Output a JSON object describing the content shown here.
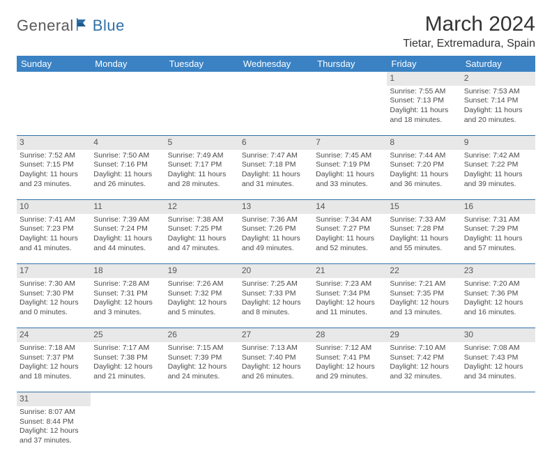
{
  "logo": {
    "part1": "General",
    "part2": "Blue"
  },
  "title": "March 2024",
  "location": "Tietar, Extremadura, Spain",
  "colors": {
    "header_bg": "#3a82c4",
    "header_text": "#ffffff",
    "daynum_bg": "#e8e8e8",
    "row_divider": "#2f6fa8",
    "logo_gray": "#595959",
    "logo_blue": "#2f6fa8"
  },
  "days_of_week": [
    "Sunday",
    "Monday",
    "Tuesday",
    "Wednesday",
    "Thursday",
    "Friday",
    "Saturday"
  ],
  "weeks": [
    [
      null,
      null,
      null,
      null,
      null,
      {
        "n": "1",
        "sunrise": "Sunrise: 7:55 AM",
        "sunset": "Sunset: 7:13 PM",
        "daylight": "Daylight: 11 hours and 18 minutes."
      },
      {
        "n": "2",
        "sunrise": "Sunrise: 7:53 AM",
        "sunset": "Sunset: 7:14 PM",
        "daylight": "Daylight: 11 hours and 20 minutes."
      }
    ],
    [
      {
        "n": "3",
        "sunrise": "Sunrise: 7:52 AM",
        "sunset": "Sunset: 7:15 PM",
        "daylight": "Daylight: 11 hours and 23 minutes."
      },
      {
        "n": "4",
        "sunrise": "Sunrise: 7:50 AM",
        "sunset": "Sunset: 7:16 PM",
        "daylight": "Daylight: 11 hours and 26 minutes."
      },
      {
        "n": "5",
        "sunrise": "Sunrise: 7:49 AM",
        "sunset": "Sunset: 7:17 PM",
        "daylight": "Daylight: 11 hours and 28 minutes."
      },
      {
        "n": "6",
        "sunrise": "Sunrise: 7:47 AM",
        "sunset": "Sunset: 7:18 PM",
        "daylight": "Daylight: 11 hours and 31 minutes."
      },
      {
        "n": "7",
        "sunrise": "Sunrise: 7:45 AM",
        "sunset": "Sunset: 7:19 PM",
        "daylight": "Daylight: 11 hours and 33 minutes."
      },
      {
        "n": "8",
        "sunrise": "Sunrise: 7:44 AM",
        "sunset": "Sunset: 7:20 PM",
        "daylight": "Daylight: 11 hours and 36 minutes."
      },
      {
        "n": "9",
        "sunrise": "Sunrise: 7:42 AM",
        "sunset": "Sunset: 7:22 PM",
        "daylight": "Daylight: 11 hours and 39 minutes."
      }
    ],
    [
      {
        "n": "10",
        "sunrise": "Sunrise: 7:41 AM",
        "sunset": "Sunset: 7:23 PM",
        "daylight": "Daylight: 11 hours and 41 minutes."
      },
      {
        "n": "11",
        "sunrise": "Sunrise: 7:39 AM",
        "sunset": "Sunset: 7:24 PM",
        "daylight": "Daylight: 11 hours and 44 minutes."
      },
      {
        "n": "12",
        "sunrise": "Sunrise: 7:38 AM",
        "sunset": "Sunset: 7:25 PM",
        "daylight": "Daylight: 11 hours and 47 minutes."
      },
      {
        "n": "13",
        "sunrise": "Sunrise: 7:36 AM",
        "sunset": "Sunset: 7:26 PM",
        "daylight": "Daylight: 11 hours and 49 minutes."
      },
      {
        "n": "14",
        "sunrise": "Sunrise: 7:34 AM",
        "sunset": "Sunset: 7:27 PM",
        "daylight": "Daylight: 11 hours and 52 minutes."
      },
      {
        "n": "15",
        "sunrise": "Sunrise: 7:33 AM",
        "sunset": "Sunset: 7:28 PM",
        "daylight": "Daylight: 11 hours and 55 minutes."
      },
      {
        "n": "16",
        "sunrise": "Sunrise: 7:31 AM",
        "sunset": "Sunset: 7:29 PM",
        "daylight": "Daylight: 11 hours and 57 minutes."
      }
    ],
    [
      {
        "n": "17",
        "sunrise": "Sunrise: 7:30 AM",
        "sunset": "Sunset: 7:30 PM",
        "daylight": "Daylight: 12 hours and 0 minutes."
      },
      {
        "n": "18",
        "sunrise": "Sunrise: 7:28 AM",
        "sunset": "Sunset: 7:31 PM",
        "daylight": "Daylight: 12 hours and 3 minutes."
      },
      {
        "n": "19",
        "sunrise": "Sunrise: 7:26 AM",
        "sunset": "Sunset: 7:32 PM",
        "daylight": "Daylight: 12 hours and 5 minutes."
      },
      {
        "n": "20",
        "sunrise": "Sunrise: 7:25 AM",
        "sunset": "Sunset: 7:33 PM",
        "daylight": "Daylight: 12 hours and 8 minutes."
      },
      {
        "n": "21",
        "sunrise": "Sunrise: 7:23 AM",
        "sunset": "Sunset: 7:34 PM",
        "daylight": "Daylight: 12 hours and 11 minutes."
      },
      {
        "n": "22",
        "sunrise": "Sunrise: 7:21 AM",
        "sunset": "Sunset: 7:35 PM",
        "daylight": "Daylight: 12 hours and 13 minutes."
      },
      {
        "n": "23",
        "sunrise": "Sunrise: 7:20 AM",
        "sunset": "Sunset: 7:36 PM",
        "daylight": "Daylight: 12 hours and 16 minutes."
      }
    ],
    [
      {
        "n": "24",
        "sunrise": "Sunrise: 7:18 AM",
        "sunset": "Sunset: 7:37 PM",
        "daylight": "Daylight: 12 hours and 18 minutes."
      },
      {
        "n": "25",
        "sunrise": "Sunrise: 7:17 AM",
        "sunset": "Sunset: 7:38 PM",
        "daylight": "Daylight: 12 hours and 21 minutes."
      },
      {
        "n": "26",
        "sunrise": "Sunrise: 7:15 AM",
        "sunset": "Sunset: 7:39 PM",
        "daylight": "Daylight: 12 hours and 24 minutes."
      },
      {
        "n": "27",
        "sunrise": "Sunrise: 7:13 AM",
        "sunset": "Sunset: 7:40 PM",
        "daylight": "Daylight: 12 hours and 26 minutes."
      },
      {
        "n": "28",
        "sunrise": "Sunrise: 7:12 AM",
        "sunset": "Sunset: 7:41 PM",
        "daylight": "Daylight: 12 hours and 29 minutes."
      },
      {
        "n": "29",
        "sunrise": "Sunrise: 7:10 AM",
        "sunset": "Sunset: 7:42 PM",
        "daylight": "Daylight: 12 hours and 32 minutes."
      },
      {
        "n": "30",
        "sunrise": "Sunrise: 7:08 AM",
        "sunset": "Sunset: 7:43 PM",
        "daylight": "Daylight: 12 hours and 34 minutes."
      }
    ],
    [
      {
        "n": "31",
        "sunrise": "Sunrise: 8:07 AM",
        "sunset": "Sunset: 8:44 PM",
        "daylight": "Daylight: 12 hours and 37 minutes."
      },
      null,
      null,
      null,
      null,
      null,
      null
    ]
  ]
}
